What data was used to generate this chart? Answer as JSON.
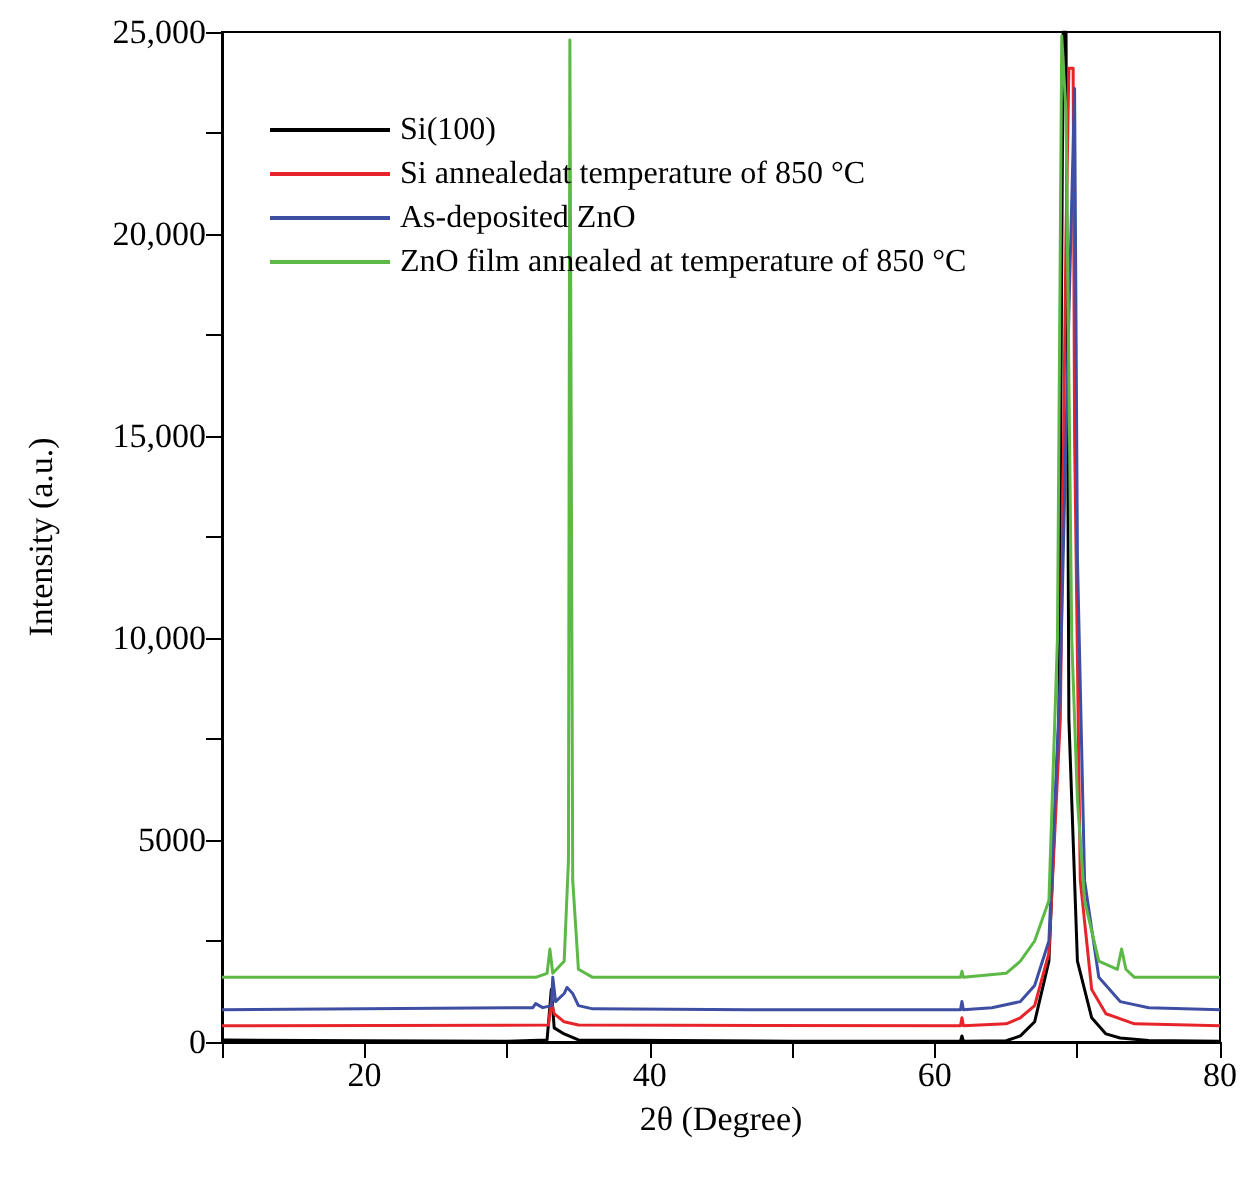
{
  "chart_data": {
    "type": "line",
    "xlabel": "2θ (Degree)",
    "ylabel": "Intensity (a.u.)",
    "xlim": [
      10,
      80
    ],
    "ylim": [
      0,
      25000
    ],
    "xticks": [
      {
        "value": 10,
        "label": null
      },
      20,
      {
        "value": 30,
        "label": null
      },
      40,
      {
        "value": 50,
        "label": null
      },
      60,
      {
        "value": 70,
        "label": null
      },
      80
    ],
    "yticks": [
      0,
      {
        "value": 2500,
        "label": null
      },
      5000,
      {
        "value": 7500,
        "label": null
      },
      {
        "value": 10000,
        "label": "10,000"
      },
      {
        "value": 12500,
        "label": null
      },
      {
        "value": 15000,
        "label": "15,000"
      },
      {
        "value": 17500,
        "label": null
      },
      {
        "value": 20000,
        "label": "20,000"
      },
      {
        "value": 22500,
        "label": null
      },
      {
        "value": 25000,
        "label": "25,000"
      }
    ],
    "grid": false,
    "legend": "top left",
    "marker": "none",
    "line_style": "solid",
    "series": [
      {
        "name": "Si(100)",
        "color": "#000000",
        "x": [
          10,
          20,
          30,
          32.8,
          33.1,
          33.3,
          34,
          35,
          50,
          61.8,
          61.9,
          62,
          65,
          66,
          67,
          68,
          68.7,
          69,
          69.2,
          69.4,
          70,
          71,
          72,
          73,
          75,
          80
        ],
        "values": [
          50,
          30,
          20,
          50,
          1300,
          350,
          200,
          50,
          20,
          20,
          150,
          20,
          30,
          150,
          500,
          2000,
          8000,
          25000,
          25000,
          8000,
          2000,
          600,
          200,
          100,
          40,
          20
        ]
      },
      {
        "name": "Si annealedat temperature of 850 °C",
        "color": "#e8242b",
        "x": [
          10,
          32.9,
          33.1,
          33.3,
          34,
          35,
          61.8,
          61.9,
          62,
          65,
          66,
          67,
          68,
          68.8,
          69.2,
          69.4,
          69.7,
          69.8,
          70.2,
          71,
          72,
          74,
          80
        ],
        "values": [
          400,
          420,
          1000,
          700,
          500,
          420,
          400,
          600,
          400,
          450,
          600,
          900,
          2200,
          8000,
          20000,
          24100,
          24100,
          15000,
          4000,
          1300,
          700,
          450,
          400
        ]
      },
      {
        "name": "As-deposited ZnO",
        "color": "#3e4fa3",
        "x": [
          10,
          31.8,
          32,
          32.5,
          33.1,
          33.2,
          33.4,
          34,
          34.2,
          34.6,
          35,
          36,
          47,
          61.8,
          61.9,
          62,
          64,
          66,
          67,
          68,
          68.8,
          69.4,
          69.8,
          70,
          70.5,
          71.5,
          73,
          75,
          80
        ],
        "values": [
          800,
          850,
          950,
          850,
          900,
          1600,
          1000,
          1200,
          1350,
          1200,
          900,
          820,
          800,
          800,
          1000,
          800,
          850,
          1000,
          1400,
          2500,
          9000,
          18000,
          23600,
          12000,
          4000,
          1600,
          1000,
          850,
          800
        ]
      },
      {
        "name": "ZnO film annealed at temperature of 850 °C",
        "color": "#5cb946",
        "x": [
          10,
          32,
          32.8,
          33,
          33.2,
          34,
          34.3,
          34.4,
          34.6,
          35,
          36,
          61.8,
          61.9,
          62,
          65,
          66,
          67,
          68,
          68.6,
          68.9,
          69.2,
          69.6,
          70,
          70.5,
          71.5,
          72.8,
          73.1,
          73.4,
          74,
          80
        ],
        "values": [
          1600,
          1600,
          1700,
          2300,
          1700,
          2000,
          4500,
          24800,
          4000,
          1800,
          1600,
          1600,
          1750,
          1600,
          1700,
          2000,
          2500,
          3500,
          10000,
          24900,
          23000,
          10000,
          6000,
          3500,
          2000,
          1800,
          2300,
          1800,
          1600,
          1600
        ]
      }
    ]
  }
}
